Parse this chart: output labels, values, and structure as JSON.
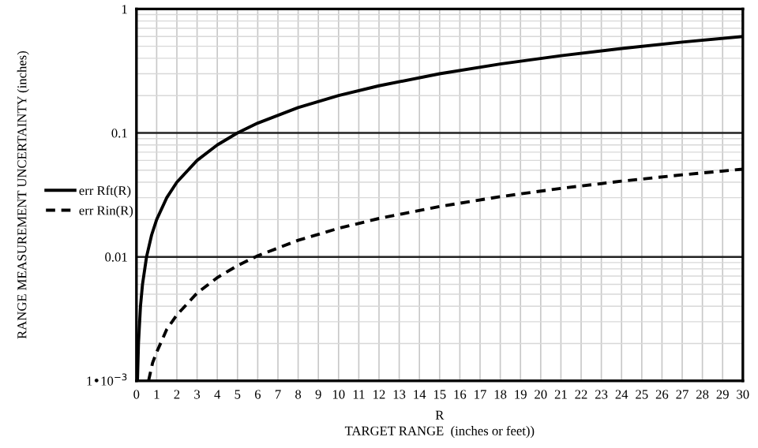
{
  "chart_data": {
    "type": "line",
    "xlabel": "R\nTARGET RANGE  (inches or feet))",
    "ylabel": "RANGE MEASUREMENT UNCERTAINTY (inches)",
    "log": "y",
    "grid": true,
    "legend": "left",
    "marker": "none",
    "xlim": [
      0,
      30
    ],
    "xticks": [
      0,
      1,
      2,
      3,
      4,
      5,
      6,
      7,
      8,
      9,
      10,
      11,
      12,
      13,
      14,
      15,
      16,
      17,
      18,
      19,
      20,
      21,
      22,
      23,
      24,
      25,
      26,
      27,
      28,
      29,
      30
    ],
    "ylim": [
      0.001,
      1
    ],
    "yticks": [
      {
        "value": 0.001,
        "label": "1•10$^{−3}$"
      },
      0.01,
      0.1,
      1
    ],
    "series": [
      {
        "name": "err Rft(R)",
        "color": "#000000",
        "line_style": "solid",
        "x": [
          0.05,
          0.1,
          0.2,
          0.3,
          0.5,
          0.75,
          1,
          1.5,
          2,
          3,
          4,
          5,
          6,
          8,
          10,
          12,
          15,
          18,
          21,
          24,
          27,
          30
        ],
        "values": [
          0.001,
          0.002,
          0.004,
          0.006,
          0.01,
          0.015,
          0.02,
          0.03,
          0.04,
          0.06,
          0.08,
          0.1,
          0.12,
          0.16,
          0.2,
          0.24,
          0.3,
          0.36,
          0.42,
          0.48,
          0.54,
          0.6
        ]
      },
      {
        "name": "err Rin(R)",
        "color": "#000000",
        "line_style": "dashed",
        "x": [
          0.6,
          0.8,
          1,
          1.5,
          2,
          3,
          4,
          5,
          6,
          8,
          10,
          12,
          15,
          18,
          21,
          24,
          27,
          30
        ],
        "values": [
          0.001,
          0.0014,
          0.0017,
          0.0026,
          0.0034,
          0.0051,
          0.0068,
          0.0085,
          0.0102,
          0.0136,
          0.017,
          0.0204,
          0.0255,
          0.0306,
          0.0357,
          0.0408,
          0.0459,
          0.051
        ]
      }
    ]
  }
}
